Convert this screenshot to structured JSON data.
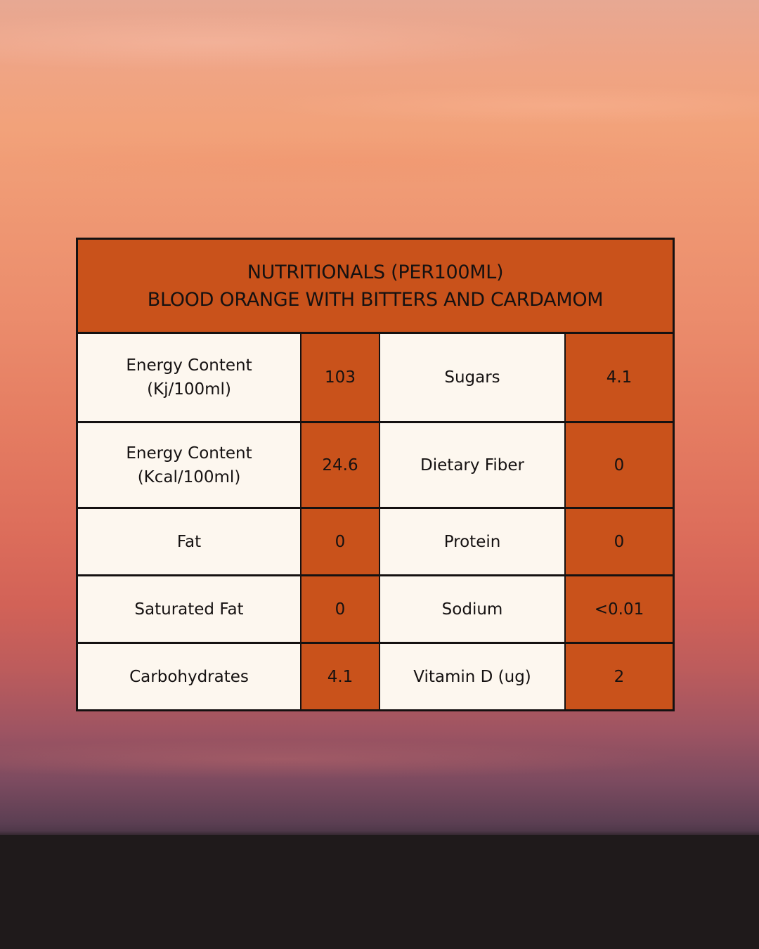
{
  "title": {
    "line1": "NUTRITIONALS (PER100ML)",
    "line2": "BLOOD ORANGE WITH BITTERS AND CARDAMOM"
  },
  "rows": [
    {
      "left_label": "Energy Content\n(Kj/100ml)",
      "left_value": "103",
      "right_label": "Sugars",
      "right_value": "4.1"
    },
    {
      "left_label": "Energy Content\n(Kcal/100ml)",
      "left_value": "24.6",
      "right_label": "Dietary Fiber",
      "right_value": "0"
    },
    {
      "left_label": "Fat",
      "left_value": "0",
      "right_label": "Protein",
      "right_value": "0"
    },
    {
      "left_label": "Saturated Fat",
      "left_value": "0",
      "right_label": "Sodium",
      "right_value": "<0.01"
    },
    {
      "left_label": "Carbohydrates",
      "left_value": "4.1",
      "right_label": "Vitamin D (ug)",
      "right_value": "2"
    }
  ],
  "colors": {
    "accent": "#c9521b",
    "cell_background": "#fdf7ef",
    "border": "#151111"
  }
}
